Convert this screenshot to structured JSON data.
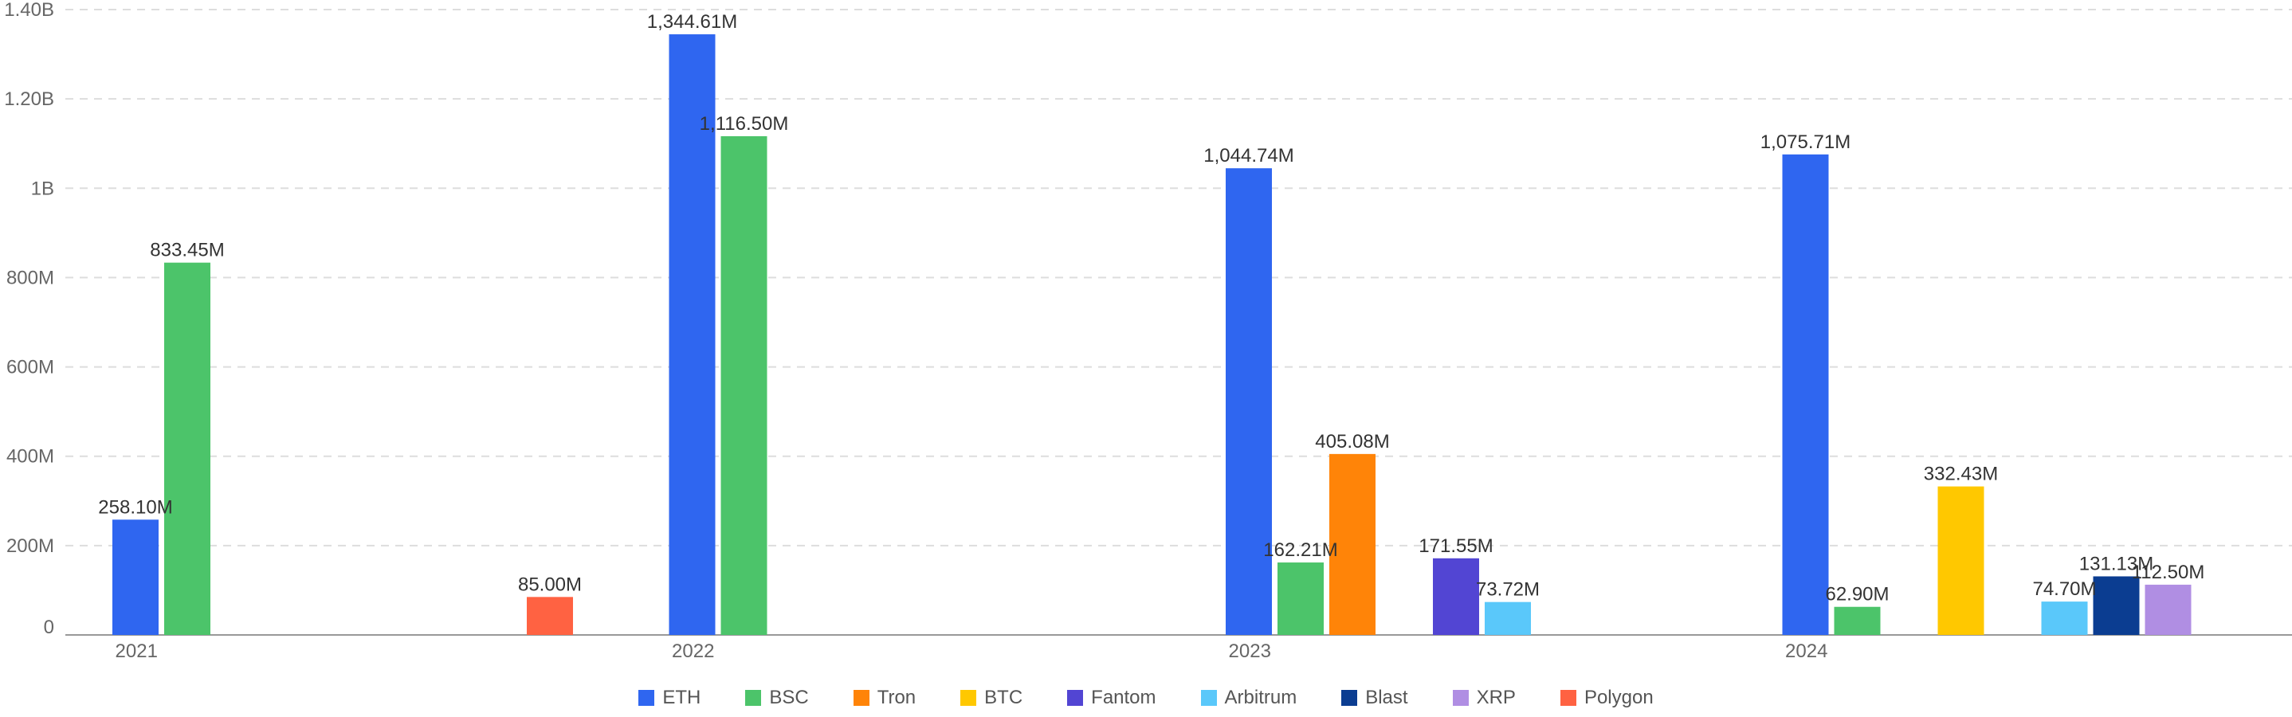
{
  "chart_data": {
    "type": "bar",
    "categories": [
      "2021",
      "2022",
      "2023",
      "2024"
    ],
    "ylim": [
      0,
      1400000000
    ],
    "yticks": [
      {
        "value": 0,
        "label": "0"
      },
      {
        "value": 200000000,
        "label": "200M"
      },
      {
        "value": 400000000,
        "label": "400M"
      },
      {
        "value": 600000000,
        "label": "600M"
      },
      {
        "value": 800000000,
        "label": "800M"
      },
      {
        "value": 1000000000,
        "label": "1B"
      },
      {
        "value": 1200000000,
        "label": "1.20B"
      },
      {
        "value": 1400000000,
        "label": "1.40B"
      }
    ],
    "grid": true,
    "legend_position": "bottom",
    "series": [
      {
        "name": "ETH",
        "color": "#2f66f0",
        "values": [
          258100000,
          1344610000,
          1044740000,
          1075710000
        ],
        "labels": [
          "258.10M",
          "1,344.61M",
          "1,044.74M",
          "1,075.71M"
        ]
      },
      {
        "name": "BSC",
        "color": "#4cc46a",
        "values": [
          833450000,
          1116500000,
          162210000,
          62900000
        ],
        "labels": [
          "833.45M",
          "1,116.50M",
          "162.21M",
          "62.90M"
        ]
      },
      {
        "name": "Tron",
        "color": "#ff8408",
        "values": [
          null,
          null,
          405080000,
          null
        ],
        "labels": [
          null,
          null,
          "405.08M",
          null
        ]
      },
      {
        "name": "BTC",
        "color": "#ffc800",
        "values": [
          null,
          null,
          null,
          332430000
        ],
        "labels": [
          null,
          null,
          null,
          "332.43M"
        ]
      },
      {
        "name": "Fantom",
        "color": "#5245d3",
        "values": [
          null,
          null,
          171550000,
          null
        ],
        "labels": [
          null,
          null,
          "171.55M",
          null
        ]
      },
      {
        "name": "Arbitrum",
        "color": "#5ac8fa",
        "values": [
          null,
          null,
          73720000,
          74700000
        ],
        "labels": [
          null,
          null,
          "73.72M",
          "74.70M"
        ]
      },
      {
        "name": "Blast",
        "color": "#0b3d91",
        "values": [
          null,
          null,
          null,
          131130000
        ],
        "labels": [
          null,
          null,
          null,
          "131.13M"
        ]
      },
      {
        "name": "XRP",
        "color": "#b08ee3",
        "values": [
          null,
          null,
          null,
          112500000
        ],
        "labels": [
          null,
          null,
          null,
          "112.50M"
        ]
      },
      {
        "name": "Polygon",
        "color": "#ff6242",
        "values": [
          85000000,
          null,
          null,
          null
        ],
        "labels": [
          "85.00M",
          null,
          null,
          null
        ]
      }
    ]
  }
}
